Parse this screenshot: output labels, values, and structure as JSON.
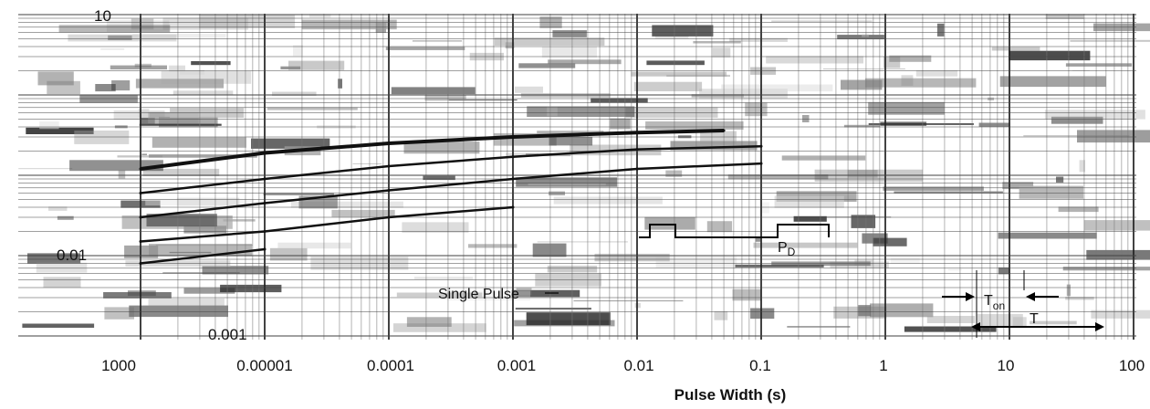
{
  "chart_data": {
    "type": "line",
    "x_scale": "log",
    "y_scale": "log",
    "x_tick_labels": [
      "1000",
      "0.00001",
      "0.0001",
      "0.001",
      "0.01",
      "0.1",
      "1",
      "10",
      "100"
    ],
    "y_tick_labels": [
      "10",
      "0.01",
      "0.001"
    ],
    "xlabel": "Pulse Width (s)",
    "annotations": {
      "single_pulse": "Single Pulse",
      "pd": "P",
      "pd_sub": "D",
      "ton": "T",
      "ton_sub": "on",
      "t": "T"
    },
    "series": [
      {
        "x": [
          1e-06,
          1e-05,
          0.0001,
          0.001,
          0.01,
          0.05
        ],
        "values": [
          0.12,
          0.19,
          0.25,
          0.3,
          0.34,
          0.36
        ]
      },
      {
        "x": [
          1e-06,
          1e-05,
          0.0001,
          0.001,
          0.01,
          0.1
        ],
        "values": [
          0.06,
          0.09,
          0.13,
          0.17,
          0.21,
          0.23
        ]
      },
      {
        "x": [
          1e-06,
          1e-05,
          0.0001,
          0.001,
          0.01,
          0.1
        ],
        "values": [
          0.03,
          0.045,
          0.065,
          0.09,
          0.12,
          0.14
        ]
      },
      {
        "x": [
          1e-06,
          1e-05,
          0.0001,
          0.001
        ],
        "values": [
          0.015,
          0.02,
          0.03,
          0.04
        ]
      },
      {
        "x": [
          1e-06,
          1e-05
        ],
        "values": [
          0.008,
          0.012
        ]
      }
    ],
    "grid": true
  }
}
